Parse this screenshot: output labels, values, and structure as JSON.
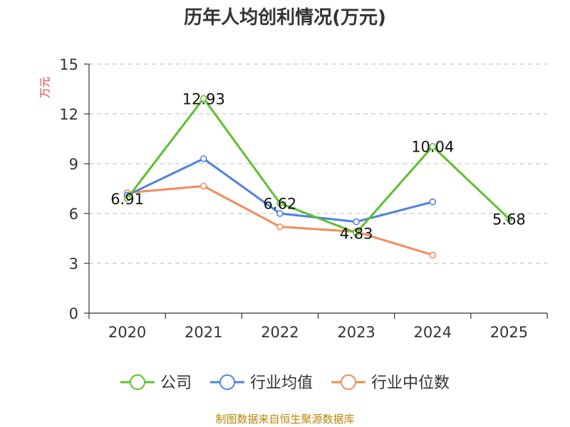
{
  "chart_data": {
    "type": "line",
    "title": "历年人均创利情况(万元)",
    "ylabel": "万元",
    "xlabel": "",
    "categories": [
      "2020",
      "2021",
      "2022",
      "2023",
      "2024",
      "2025"
    ],
    "ylim": [
      0,
      15
    ],
    "yticks": [
      0,
      3,
      6,
      9,
      12,
      15
    ],
    "grid": true,
    "legend_position": "bottom",
    "series": [
      {
        "name": "公司",
        "color": "#5cc12b",
        "values": [
          6.91,
          12.93,
          6.62,
          4.83,
          10.04,
          5.68
        ],
        "labels": [
          "6.91",
          "12.93",
          "6.62",
          "4.83",
          "10.04",
          "5.68"
        ]
      },
      {
        "name": "行业均值",
        "color": "#4f80e1",
        "values": [
          7.1,
          9.3,
          6.0,
          5.5,
          6.7,
          null
        ],
        "labels": []
      },
      {
        "name": "行业中位数",
        "color": "#f28c5a",
        "values": [
          7.25,
          7.65,
          5.2,
          4.9,
          3.5,
          null
        ],
        "labels": []
      }
    ],
    "source": "制图数据来自恒生聚源数据库",
    "colors": {
      "unit": "#e03c3c",
      "source": "#b8860b",
      "grid": "#c8c8c8",
      "axis": "#333333"
    }
  }
}
